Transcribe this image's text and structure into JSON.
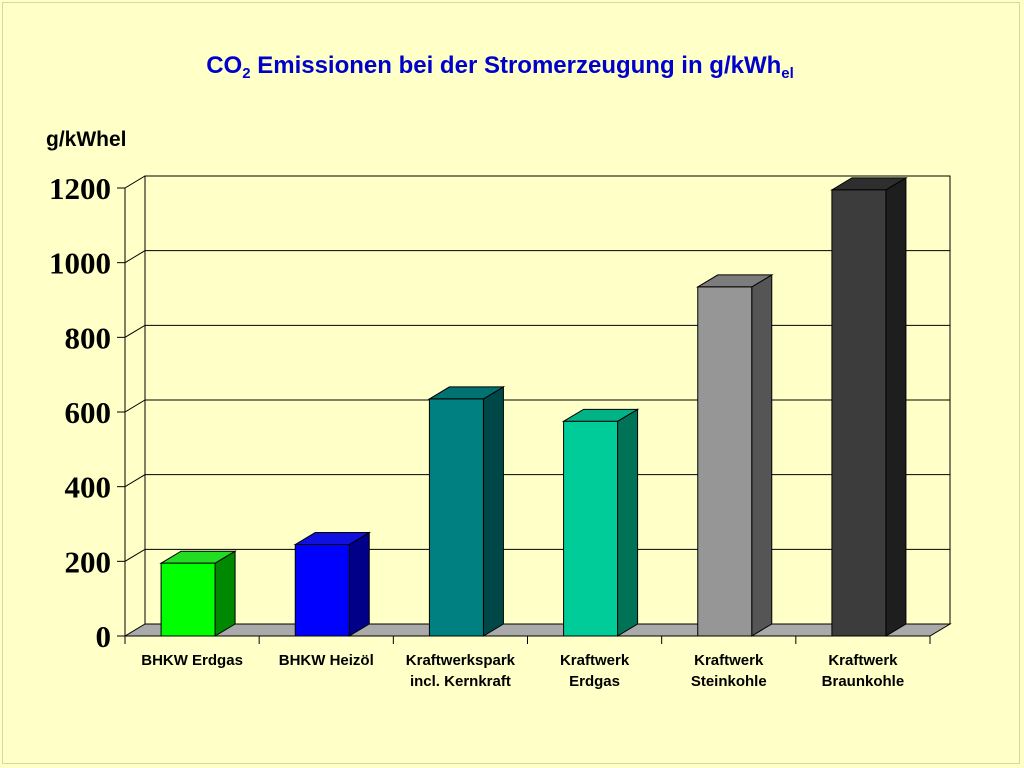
{
  "chart_data": {
    "type": "bar",
    "title": {
      "main": "CO",
      "sub1": "2",
      "rest": " Emissionen bei der Stromerzeugung in g/kWh",
      "sub2": "el"
    },
    "ylabel": "g/kWhel",
    "ylim": [
      0,
      1200
    ],
    "yticks": [
      "0",
      "200",
      "400",
      "600",
      "800",
      "1000",
      "1200"
    ],
    "categories": [
      [
        "BHKW Erdgas"
      ],
      [
        "BHKW Heizöl"
      ],
      [
        "Kraftwerkspark",
        "incl. Kernkraft"
      ],
      [
        "Kraftwerk",
        "Erdgas"
      ],
      [
        "Kraftwerk",
        "Steinkohle"
      ],
      [
        "Kraftwerk",
        "Braunkohle"
      ]
    ],
    "values": [
      195,
      245,
      635,
      575,
      935,
      1195
    ],
    "colors": [
      {
        "front": "#00ff00",
        "top": "#22dd22",
        "side": "#008800"
      },
      {
        "front": "#0000ff",
        "top": "#1010e0",
        "side": "#000088"
      },
      {
        "front": "#008080",
        "top": "#007272",
        "side": "#004848"
      },
      {
        "front": "#00cc99",
        "top": "#00b386",
        "side": "#007255"
      },
      {
        "front": "#969696",
        "top": "#7c7c7c",
        "side": "#555555"
      },
      {
        "front": "#3c3c3c",
        "top": "#2e2e2e",
        "side": "#1e1e1e"
      }
    ],
    "grid": true
  }
}
